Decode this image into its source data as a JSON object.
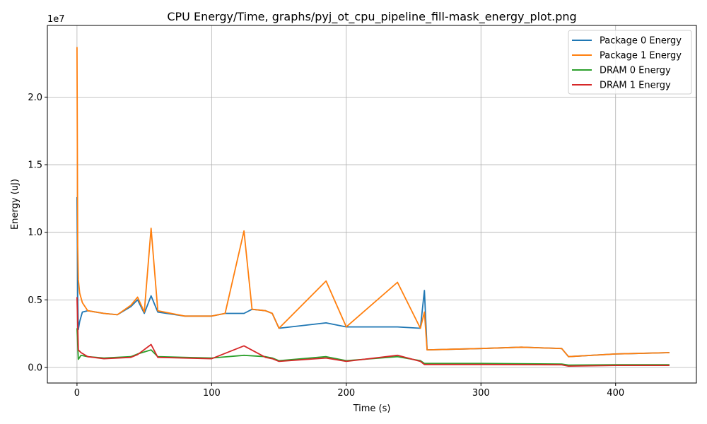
{
  "chart_data": {
    "type": "line",
    "title": "CPU Energy/Time, graphs/pyj_ot_cpu_pipeline_fill-mask_energy_plot.png",
    "xlabel": "Time (s)",
    "ylabel": "Energy (uJ)",
    "y_offset_label": "1e7",
    "xlim": [
      -22,
      460
    ],
    "ylim": [
      -1.15,
      25.3
    ],
    "y_units_note": "values in units of 1e7 uJ",
    "xticks": [
      0,
      100,
      200,
      300,
      400
    ],
    "xtick_labels": [
      "0",
      "100",
      "200",
      "300",
      "400"
    ],
    "yticks": [
      0.0,
      0.5,
      1.0,
      1.5,
      2.0
    ],
    "ytick_labels": [
      "0.0",
      "0.5",
      "1.0",
      "1.5",
      "2.0"
    ],
    "grid": true,
    "legend_position": "top-right",
    "series": [
      {
        "name": "Package 0 Energy",
        "color": "#1f77b4",
        "x": [
          0,
          0.5,
          1,
          2,
          4,
          8,
          20,
          30,
          40,
          45,
          50,
          55,
          60,
          80,
          100,
          110,
          124,
          130,
          140,
          145,
          150,
          185,
          200,
          238,
          255,
          258,
          260,
          300,
          330,
          360,
          365,
          400,
          440
        ],
        "y": [
          12.6,
          5.2,
          2.8,
          3.4,
          4.1,
          4.2,
          4.0,
          3.9,
          4.5,
          5.0,
          4.0,
          5.3,
          4.1,
          3.8,
          3.8,
          4.0,
          4.0,
          4.3,
          4.2,
          4.0,
          2.9,
          3.3,
          3.0,
          3.0,
          2.9,
          5.7,
          1.3,
          1.4,
          1.5,
          1.4,
          0.8,
          1.0,
          1.1
        ]
      },
      {
        "name": "Package 1 Energy",
        "color": "#ff7f0e",
        "x": [
          0,
          0.5,
          1,
          2,
          4,
          8,
          20,
          30,
          40,
          45,
          50,
          55,
          60,
          80,
          100,
          110,
          124,
          130,
          140,
          145,
          150,
          185,
          200,
          238,
          255,
          258,
          260,
          300,
          330,
          360,
          365,
          400,
          440
        ],
        "y": [
          23.7,
          9.0,
          6.5,
          5.5,
          4.8,
          4.2,
          4.0,
          3.9,
          4.6,
          5.2,
          4.1,
          10.3,
          4.2,
          3.8,
          3.8,
          4.0,
          10.1,
          4.3,
          4.2,
          4.0,
          2.9,
          6.4,
          3.0,
          6.3,
          2.9,
          4.1,
          1.3,
          1.4,
          1.5,
          1.4,
          0.8,
          1.0,
          1.1
        ]
      },
      {
        "name": "DRAM 0 Energy",
        "color": "#2ca02c",
        "x": [
          0,
          1,
          3,
          8,
          20,
          40,
          45,
          55,
          60,
          100,
          124,
          140,
          145,
          150,
          185,
          200,
          238,
          255,
          258,
          300,
          360,
          365,
          400,
          440
        ],
        "y": [
          2.9,
          0.6,
          0.9,
          0.8,
          0.7,
          0.8,
          1.0,
          1.3,
          0.8,
          0.7,
          0.9,
          0.8,
          0.7,
          0.5,
          0.8,
          0.5,
          0.8,
          0.5,
          0.3,
          0.3,
          0.25,
          0.18,
          0.2,
          0.2
        ]
      },
      {
        "name": "DRAM 1 Energy",
        "color": "#d62728",
        "x": [
          0,
          1,
          3,
          8,
          20,
          40,
          45,
          55,
          60,
          100,
          124,
          140,
          145,
          150,
          185,
          200,
          238,
          255,
          258,
          300,
          360,
          365,
          400,
          440
        ],
        "y": [
          5.2,
          1.3,
          1.1,
          0.8,
          0.65,
          0.75,
          0.95,
          1.7,
          0.75,
          0.65,
          1.6,
          0.75,
          0.65,
          0.45,
          0.7,
          0.45,
          0.9,
          0.45,
          0.22,
          0.22,
          0.2,
          0.1,
          0.15,
          0.15
        ]
      }
    ]
  }
}
